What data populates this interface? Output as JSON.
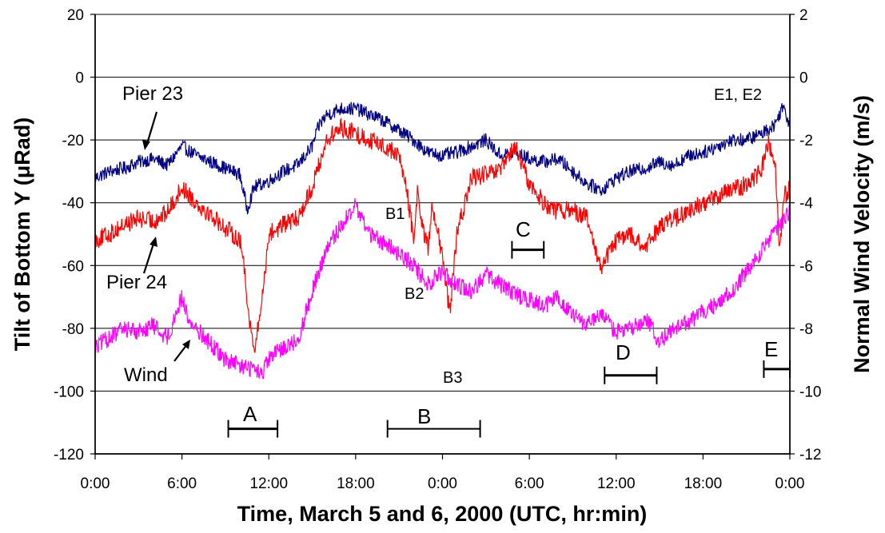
{
  "chart_data": {
    "type": "line",
    "xlabel": "Time, March 5 and 6, 2000 (UTC, hr:min)",
    "ylabel_left": "Tilt of Bottom Y (μRad)",
    "ylabel_right": "Normal Wind Velocity (m/s)",
    "x_ticks": [
      "0:00",
      "6:00",
      "12:00",
      "18:00",
      "0:00",
      "6:00",
      "12:00",
      "18:00",
      "0:00"
    ],
    "xlim_hours": [
      0,
      48
    ],
    "ylim_left": [
      -120,
      20
    ],
    "ylim_right": [
      -12,
      2
    ],
    "y_ticks_left": [
      20,
      0,
      -20,
      -40,
      -60,
      -80,
      -100,
      -120
    ],
    "y_ticks_right": [
      2,
      0,
      -2,
      -4,
      -6,
      -8,
      -10,
      -12
    ],
    "grid": "horizontal",
    "series": [
      {
        "name": "Pier 23",
        "color": "#000080",
        "axis": "left",
        "x": [
          0,
          1,
          2,
          3,
          4,
          5,
          6,
          7,
          8,
          9,
          10,
          10.5,
          11,
          12,
          13,
          14,
          15,
          15.5,
          16,
          17,
          18,
          19,
          20,
          21,
          22,
          23,
          24,
          25,
          26,
          27,
          28,
          29,
          30,
          31,
          32,
          33,
          34,
          35,
          36,
          37,
          38,
          39,
          40,
          41,
          42,
          43,
          44,
          45,
          46,
          47,
          47.5,
          48
        ],
        "values": [
          -32,
          -30,
          -29,
          -27,
          -26,
          -28,
          -22,
          -25,
          -27,
          -29,
          -31,
          -42,
          -35,
          -33,
          -30,
          -28,
          -22,
          -15,
          -12,
          -10,
          -10,
          -12,
          -14,
          -17,
          -20,
          -24,
          -25,
          -24,
          -22,
          -20,
          -25,
          -24,
          -26,
          -27,
          -26,
          -30,
          -34,
          -36,
          -32,
          -30,
          -29,
          -27,
          -28,
          -25,
          -24,
          -22,
          -20,
          -20,
          -18,
          -15,
          -9,
          -15
        ]
      },
      {
        "name": "Pier 24",
        "color": "#ff0000",
        "axis": "left",
        "x": [
          0,
          1,
          2,
          3,
          4,
          5,
          6,
          7,
          8,
          9,
          10,
          10.3,
          10.6,
          11,
          11.5,
          12,
          13,
          14,
          15,
          16,
          17,
          18,
          19,
          20,
          21,
          21.5,
          22,
          22.3,
          22.5,
          23,
          23.3,
          24,
          24.5,
          24.8,
          25,
          26,
          27,
          28,
          29,
          30,
          31,
          32,
          33,
          34,
          34.5,
          35,
          36,
          37,
          38,
          39,
          40,
          41,
          42,
          43,
          44,
          45,
          46,
          46.5,
          47,
          47.3,
          47.6,
          48
        ],
        "values": [
          -52,
          -50,
          -47,
          -45,
          -46,
          -43,
          -35,
          -40,
          -44,
          -48,
          -52,
          -60,
          -75,
          -88,
          -72,
          -50,
          -47,
          -45,
          -35,
          -20,
          -16,
          -18,
          -20,
          -22,
          -25,
          -35,
          -52,
          -35,
          -45,
          -55,
          -40,
          -58,
          -75,
          -60,
          -50,
          -32,
          -31,
          -30,
          -22,
          -34,
          -40,
          -43,
          -42,
          -45,
          -55,
          -60,
          -52,
          -50,
          -55,
          -47,
          -45,
          -43,
          -40,
          -38,
          -36,
          -34,
          -30,
          -20,
          -28,
          -55,
          -38,
          -35
        ]
      },
      {
        "name": "Wind",
        "color": "#ff00ff",
        "axis": "right",
        "x": [
          0,
          1,
          2,
          3,
          4,
          5,
          6,
          6.5,
          7,
          8,
          9,
          10,
          11,
          11.5,
          12,
          13,
          14,
          15,
          16,
          17,
          18,
          19,
          20,
          21,
          22,
          23,
          24,
          25,
          26,
          27,
          28,
          29,
          30,
          31,
          32,
          33,
          34,
          35,
          36,
          37,
          38,
          39,
          40,
          41,
          42,
          43,
          44,
          45,
          46,
          47,
          48
        ],
        "values": [
          -8.6,
          -8.3,
          -8.0,
          -8.1,
          -7.9,
          -8.3,
          -7.0,
          -7.8,
          -8.0,
          -8.5,
          -9.0,
          -9.2,
          -9.3,
          -9.5,
          -9.0,
          -8.6,
          -8.4,
          -6.8,
          -5.5,
          -4.7,
          -4.1,
          -5.0,
          -5.3,
          -5.6,
          -6.0,
          -6.6,
          -6.2,
          -6.6,
          -6.8,
          -6.3,
          -6.6,
          -6.9,
          -7.1,
          -7.3,
          -7.0,
          -7.6,
          -7.9,
          -7.6,
          -8.1,
          -8.0,
          -7.7,
          -8.4,
          -8.0,
          -7.8,
          -7.5,
          -7.2,
          -6.8,
          -6.2,
          -5.6,
          -4.9,
          -4.3
        ]
      }
    ],
    "annotations": {
      "pier23": "Pier 23",
      "pier24": "Pier 24",
      "wind": "Wind",
      "e1e2": "E1, E2",
      "b1": "B1",
      "b2": "B2",
      "b3": "B3",
      "A": "A",
      "B": "B",
      "C": "C",
      "D": "D",
      "E": "E"
    },
    "intervals": [
      {
        "label": "A",
        "start": 9.2,
        "end": 12.6,
        "y": -112
      },
      {
        "label": "B",
        "start": 20.2,
        "end": 26.6,
        "y": -112
      },
      {
        "label": "C",
        "start": 28.8,
        "end": 31.0,
        "y": -55
      },
      {
        "label": "D",
        "start": 35.2,
        "end": 38.8,
        "y": -95
      },
      {
        "label": "E",
        "start": 46.2,
        "end": 48,
        "y": -93
      }
    ]
  }
}
